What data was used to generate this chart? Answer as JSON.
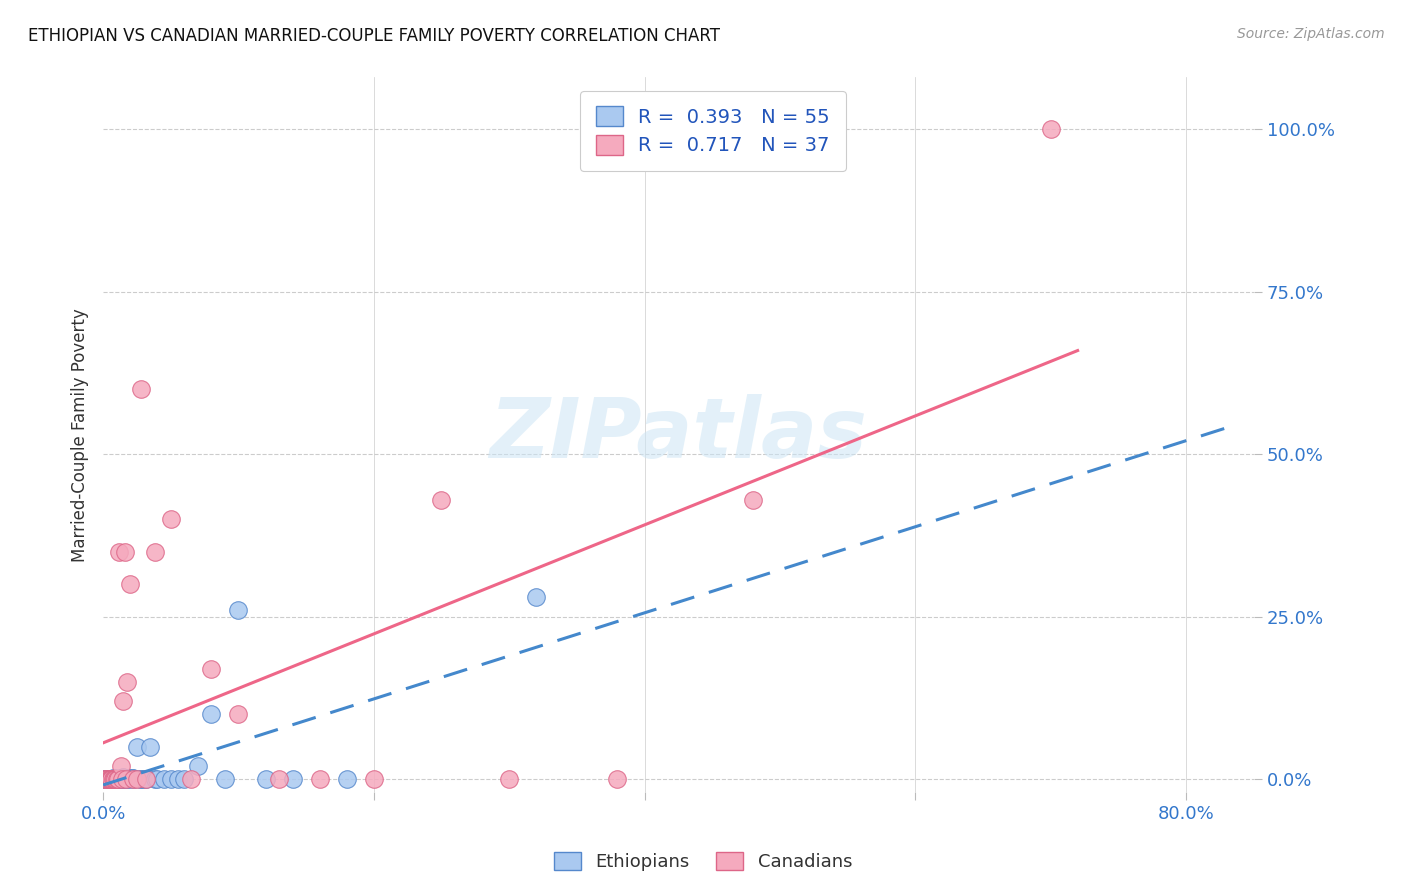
{
  "title": "ETHIOPIAN VS CANADIAN MARRIED-COUPLE FAMILY POVERTY CORRELATION CHART",
  "source": "Source: ZipAtlas.com",
  "ylabel": "Married-Couple Family Poverty",
  "xlim": [
    0.0,
    0.85
  ],
  "ylim": [
    -0.02,
    1.08
  ],
  "legend_R1": "0.393",
  "legend_N1": "55",
  "legend_R2": "0.717",
  "legend_N2": "37",
  "ethiopian_color": "#aac9f0",
  "canadian_color": "#f5aabe",
  "ethiopian_edge": "#5588cc",
  "canadian_edge": "#dd6688",
  "trend_ethiopian_color": "#4488cc",
  "trend_canadian_color": "#ee6688",
  "background_color": "#ffffff",
  "grid_color": "#cccccc",
  "ethiopians_x": [
    0.001,
    0.002,
    0.002,
    0.003,
    0.003,
    0.004,
    0.004,
    0.005,
    0.005,
    0.006,
    0.006,
    0.007,
    0.007,
    0.008,
    0.008,
    0.009,
    0.009,
    0.01,
    0.01,
    0.011,
    0.011,
    0.012,
    0.013,
    0.013,
    0.014,
    0.015,
    0.015,
    0.016,
    0.017,
    0.018,
    0.019,
    0.02,
    0.021,
    0.022,
    0.023,
    0.025,
    0.027,
    0.028,
    0.03,
    0.032,
    0.035,
    0.038,
    0.04,
    0.045,
    0.05,
    0.055,
    0.06,
    0.07,
    0.08,
    0.09,
    0.1,
    0.12,
    0.14,
    0.18,
    0.32
  ],
  "ethiopians_y": [
    0.0,
    0.001,
    0.0,
    0.001,
    0.0,
    0.001,
    0.0,
    0.001,
    0.0,
    0.001,
    0.0,
    0.001,
    0.002,
    0.0,
    0.001,
    0.001,
    0.002,
    0.0,
    0.001,
    0.0,
    0.001,
    0.001,
    0.0,
    0.002,
    0.001,
    0.001,
    0.003,
    0.0,
    0.001,
    0.001,
    0.002,
    0.001,
    0.002,
    0.002,
    0.001,
    0.05,
    0.0,
    0.001,
    0.001,
    0.0,
    0.05,
    0.0,
    0.001,
    0.001,
    0.001,
    0.001,
    0.0,
    0.02,
    0.1,
    0.0,
    0.26,
    0.0,
    0.001,
    0.0,
    0.28
  ],
  "canadians_x": [
    0.001,
    0.002,
    0.003,
    0.004,
    0.005,
    0.006,
    0.006,
    0.007,
    0.008,
    0.009,
    0.01,
    0.011,
    0.012,
    0.013,
    0.014,
    0.015,
    0.016,
    0.017,
    0.018,
    0.02,
    0.022,
    0.025,
    0.028,
    0.032,
    0.038,
    0.05,
    0.065,
    0.08,
    0.1,
    0.13,
    0.16,
    0.2,
    0.25,
    0.3,
    0.38,
    0.48,
    0.7
  ],
  "canadians_y": [
    0.0,
    0.001,
    0.0,
    0.001,
    0.0,
    0.001,
    0.0,
    0.001,
    0.001,
    0.001,
    0.001,
    0.0,
    0.35,
    0.02,
    0.001,
    0.12,
    0.35,
    0.001,
    0.15,
    0.3,
    0.001,
    0.001,
    0.6,
    0.001,
    0.35,
    0.4,
    0.001,
    0.17,
    0.1,
    0.001,
    0.001,
    0.001,
    0.43,
    0.001,
    0.001,
    0.43,
    1.0
  ]
}
